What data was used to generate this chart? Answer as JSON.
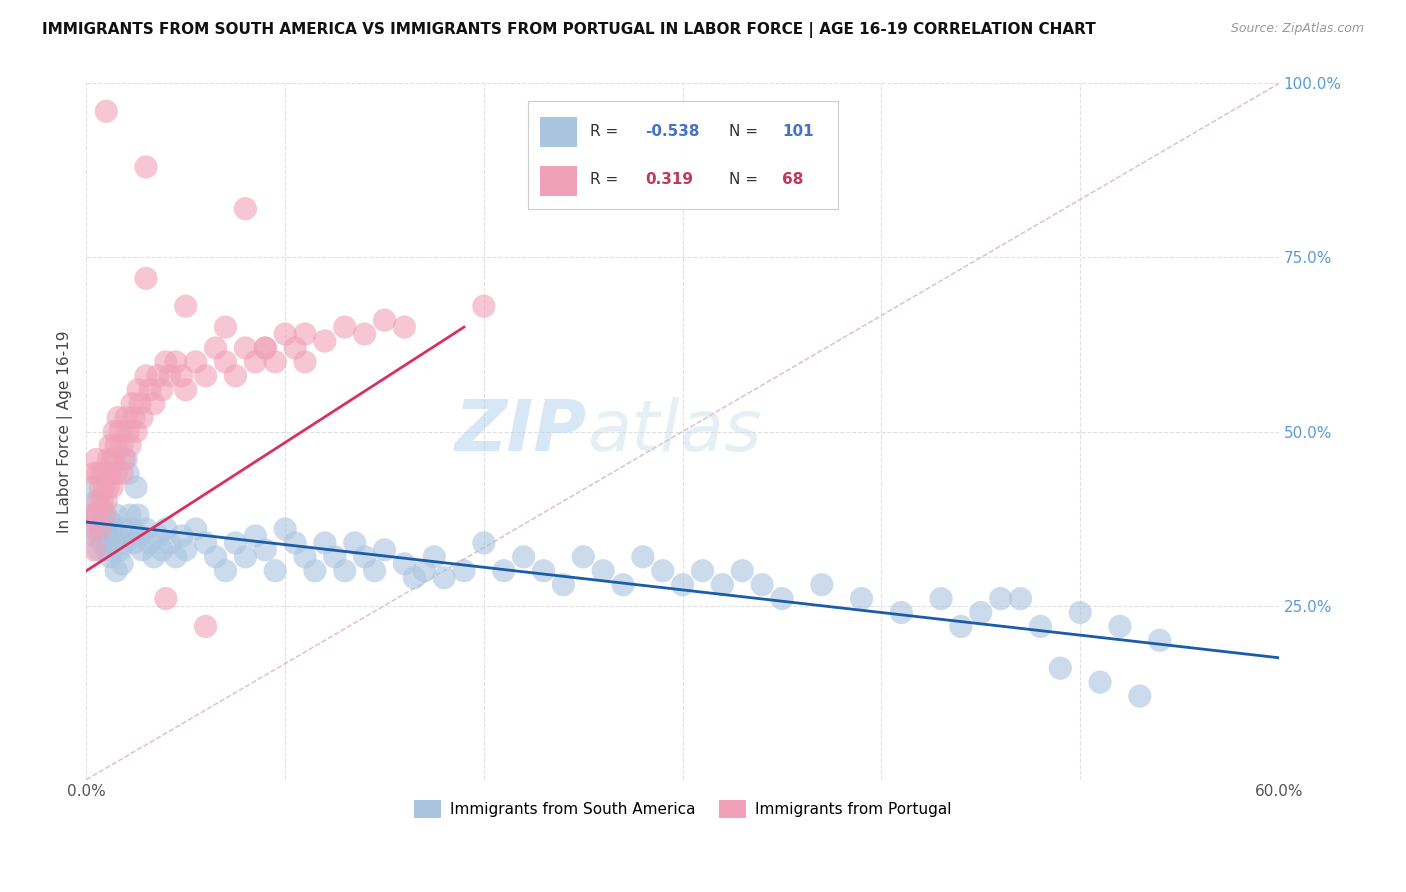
{
  "title": "IMMIGRANTS FROM SOUTH AMERICA VS IMMIGRANTS FROM PORTUGAL IN LABOR FORCE | AGE 16-19 CORRELATION CHART",
  "source": "Source: ZipAtlas.com",
  "ylabel": "In Labor Force | Age 16-19",
  "x_min": 0.0,
  "x_max": 0.6,
  "y_min": 0.0,
  "y_max": 1.0,
  "blue_color": "#aac4e0",
  "pink_color": "#f0a0b8",
  "blue_line_color": "#1a5ca8",
  "pink_line_color": "#d83060",
  "diagonal_color": "#cccccc",
  "legend_label_blue": "Immigrants from South America",
  "legend_label_pink": "Immigrants from Portugal",
  "blue_R": "-0.538",
  "blue_N": "101",
  "pink_R": "0.319",
  "pink_N": "68",
  "watermark_zip": "ZIP",
  "watermark_atlas": "atlas",
  "blue_scatter_x": [
    0.002,
    0.003,
    0.004,
    0.005,
    0.005,
    0.006,
    0.006,
    0.007,
    0.008,
    0.008,
    0.009,
    0.01,
    0.01,
    0.011,
    0.012,
    0.012,
    0.013,
    0.014,
    0.015,
    0.015,
    0.016,
    0.017,
    0.018,
    0.018,
    0.019,
    0.02,
    0.021,
    0.022,
    0.023,
    0.024,
    0.025,
    0.026,
    0.027,
    0.028,
    0.03,
    0.032,
    0.034,
    0.036,
    0.038,
    0.04,
    0.042,
    0.045,
    0.048,
    0.05,
    0.055,
    0.06,
    0.065,
    0.07,
    0.075,
    0.08,
    0.085,
    0.09,
    0.095,
    0.1,
    0.105,
    0.11,
    0.115,
    0.12,
    0.125,
    0.13,
    0.135,
    0.14,
    0.145,
    0.15,
    0.16,
    0.165,
    0.17,
    0.175,
    0.18,
    0.19,
    0.2,
    0.21,
    0.22,
    0.23,
    0.24,
    0.25,
    0.26,
    0.27,
    0.28,
    0.29,
    0.3,
    0.31,
    0.32,
    0.33,
    0.34,
    0.35,
    0.37,
    0.39,
    0.41,
    0.43,
    0.45,
    0.47,
    0.49,
    0.51,
    0.53,
    0.44,
    0.46,
    0.48,
    0.5,
    0.52,
    0.54
  ],
  "blue_scatter_y": [
    0.38,
    0.42,
    0.35,
    0.4,
    0.36,
    0.38,
    0.33,
    0.37,
    0.34,
    0.39,
    0.36,
    0.38,
    0.33,
    0.35,
    0.37,
    0.32,
    0.36,
    0.34,
    0.38,
    0.3,
    0.35,
    0.33,
    0.36,
    0.31,
    0.34,
    0.46,
    0.44,
    0.38,
    0.36,
    0.34,
    0.42,
    0.38,
    0.35,
    0.33,
    0.36,
    0.34,
    0.32,
    0.35,
    0.33,
    0.36,
    0.34,
    0.32,
    0.35,
    0.33,
    0.36,
    0.34,
    0.32,
    0.3,
    0.34,
    0.32,
    0.35,
    0.33,
    0.3,
    0.36,
    0.34,
    0.32,
    0.3,
    0.34,
    0.32,
    0.3,
    0.34,
    0.32,
    0.3,
    0.33,
    0.31,
    0.29,
    0.3,
    0.32,
    0.29,
    0.3,
    0.34,
    0.3,
    0.32,
    0.3,
    0.28,
    0.32,
    0.3,
    0.28,
    0.32,
    0.3,
    0.28,
    0.3,
    0.28,
    0.3,
    0.28,
    0.26,
    0.28,
    0.26,
    0.24,
    0.26,
    0.24,
    0.26,
    0.16,
    0.14,
    0.12,
    0.22,
    0.26,
    0.22,
    0.24,
    0.22,
    0.2
  ],
  "pink_scatter_x": [
    0.002,
    0.003,
    0.004,
    0.004,
    0.005,
    0.005,
    0.006,
    0.006,
    0.007,
    0.007,
    0.008,
    0.008,
    0.009,
    0.009,
    0.01,
    0.01,
    0.011,
    0.011,
    0.012,
    0.012,
    0.013,
    0.013,
    0.014,
    0.014,
    0.015,
    0.015,
    0.016,
    0.017,
    0.018,
    0.018,
    0.019,
    0.02,
    0.021,
    0.022,
    0.023,
    0.024,
    0.025,
    0.026,
    0.027,
    0.028,
    0.03,
    0.032,
    0.034,
    0.036,
    0.038,
    0.04,
    0.042,
    0.045,
    0.048,
    0.05,
    0.055,
    0.06,
    0.065,
    0.07,
    0.075,
    0.08,
    0.085,
    0.09,
    0.095,
    0.1,
    0.105,
    0.11,
    0.12,
    0.13,
    0.14,
    0.15,
    0.16,
    0.2
  ],
  "pink_scatter_y": [
    0.36,
    0.38,
    0.33,
    0.44,
    0.38,
    0.46,
    0.4,
    0.44,
    0.42,
    0.36,
    0.4,
    0.44,
    0.42,
    0.38,
    0.44,
    0.4,
    0.46,
    0.42,
    0.48,
    0.44,
    0.46,
    0.42,
    0.5,
    0.46,
    0.48,
    0.44,
    0.52,
    0.5,
    0.48,
    0.44,
    0.46,
    0.52,
    0.5,
    0.48,
    0.54,
    0.52,
    0.5,
    0.56,
    0.54,
    0.52,
    0.58,
    0.56,
    0.54,
    0.58,
    0.56,
    0.6,
    0.58,
    0.6,
    0.58,
    0.56,
    0.6,
    0.58,
    0.62,
    0.6,
    0.58,
    0.62,
    0.6,
    0.62,
    0.6,
    0.64,
    0.62,
    0.64,
    0.63,
    0.65,
    0.64,
    0.66,
    0.65,
    0.68
  ],
  "pink_outlier_x": [
    0.01,
    0.03,
    0.08,
    0.03,
    0.05,
    0.07,
    0.09,
    0.11,
    0.04,
    0.06
  ],
  "pink_outlier_y": [
    0.96,
    0.88,
    0.82,
    0.72,
    0.68,
    0.65,
    0.62,
    0.6,
    0.26,
    0.22
  ]
}
